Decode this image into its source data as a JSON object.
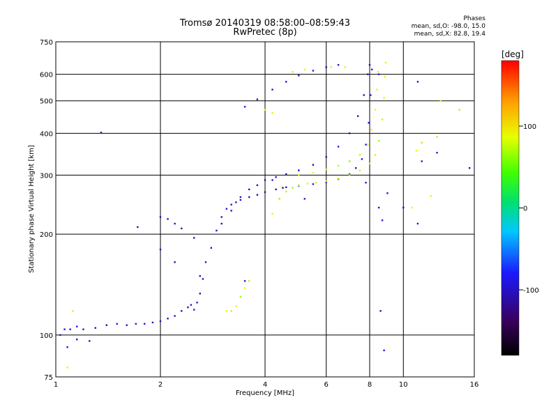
{
  "header": {
    "title": "Tromsø 20140319 08:58:00–08:59:43",
    "subtitle": "RwPretec (8p)"
  },
  "phases_box": {
    "title": "Phases",
    "line_o": "mean, sd,O: -98.0, 15.0",
    "line_x": "mean, sd,X: 82.8, 19.4"
  },
  "chart_data": {
    "type": "scatter",
    "title": "Tromsø 20140319 08:58:00–08:59:43",
    "subtitle": "RwPretec (8p)",
    "xlabel": "Frequency [MHz]",
    "ylabel": "Stationary phase Virtual Height [km]",
    "x_scale": "log",
    "y_scale": "log",
    "xlim": [
      1,
      16
    ],
    "ylim": [
      75,
      750
    ],
    "x_ticks": [
      1,
      2,
      4,
      6,
      8,
      10,
      16
    ],
    "y_ticks": [
      75,
      100,
      200,
      300,
      400,
      500,
      600,
      750
    ],
    "grid": true,
    "colorbar": {
      "label": "[deg]",
      "range": [
        -180,
        180
      ],
      "ticks": [
        100,
        0,
        -100
      ]
    },
    "series": [
      {
        "mode": "O",
        "phase_mean": -98.0,
        "phase_sd": 15.0,
        "points": [
          [
            1.03,
            100
          ],
          [
            1.06,
            104
          ],
          [
            1.1,
            104
          ],
          [
            1.15,
            106
          ],
          [
            1.2,
            104
          ],
          [
            1.3,
            105
          ],
          [
            1.4,
            107
          ],
          [
            1.5,
            108
          ],
          [
            1.6,
            107
          ],
          [
            1.7,
            108
          ],
          [
            1.8,
            108
          ],
          [
            1.9,
            109
          ],
          [
            2.0,
            110
          ],
          [
            2.1,
            112
          ],
          [
            2.2,
            114
          ],
          [
            2.3,
            118
          ],
          [
            2.4,
            121
          ],
          [
            2.45,
            123
          ],
          [
            2.5,
            119
          ],
          [
            2.55,
            125
          ],
          [
            2.6,
            133
          ],
          [
            2.65,
            147
          ],
          [
            2.7,
            165
          ],
          [
            2.8,
            182
          ],
          [
            2.9,
            205
          ],
          [
            3.0,
            225
          ],
          [
            3.1,
            238
          ],
          [
            3.2,
            245
          ],
          [
            3.3,
            249
          ],
          [
            3.4,
            253
          ],
          [
            3.6,
            258
          ],
          [
            3.8,
            262
          ],
          [
            4.0,
            267
          ],
          [
            4.3,
            272
          ],
          [
            4.6,
            276
          ],
          [
            5.0,
            279
          ],
          [
            5.5,
            282
          ],
          [
            6.0,
            286
          ],
          [
            6.5,
            292
          ],
          [
            7.0,
            302
          ],
          [
            7.3,
            315
          ],
          [
            7.6,
            335
          ],
          [
            7.8,
            370
          ],
          [
            7.95,
            430
          ],
          [
            8.05,
            520
          ],
          [
            8.12,
            620
          ],
          [
            2.0,
            225
          ],
          [
            2.1,
            222
          ],
          [
            2.2,
            215
          ],
          [
            2.3,
            208
          ],
          [
            2.5,
            195
          ],
          [
            3.0,
            215
          ],
          [
            3.2,
            235
          ],
          [
            3.4,
            258
          ],
          [
            3.6,
            272
          ],
          [
            3.8,
            280
          ],
          [
            4.0,
            290
          ],
          [
            4.3,
            296
          ],
          [
            4.6,
            302
          ],
          [
            5.0,
            310
          ],
          [
            5.5,
            322
          ],
          [
            6.0,
            340
          ],
          [
            6.5,
            365
          ],
          [
            7.0,
            400
          ],
          [
            7.4,
            450
          ],
          [
            7.7,
            520
          ],
          [
            7.9,
            600
          ],
          [
            8.0,
            640
          ],
          [
            3.5,
            480
          ],
          [
            3.8,
            505
          ],
          [
            4.2,
            540
          ],
          [
            4.6,
            570
          ],
          [
            5.0,
            595
          ],
          [
            5.5,
            615
          ],
          [
            6.0,
            630
          ],
          [
            6.5,
            640
          ],
          [
            1.15,
            97
          ],
          [
            1.25,
            96
          ],
          [
            1.08,
            92
          ],
          [
            1.35,
            402
          ],
          [
            1.72,
            210
          ],
          [
            2.0,
            180
          ],
          [
            2.2,
            165
          ],
          [
            2.6,
            150
          ],
          [
            3.5,
            145
          ],
          [
            4.2,
            290
          ],
          [
            4.5,
            275
          ],
          [
            5.2,
            255
          ],
          [
            7.8,
            285
          ],
          [
            8.5,
            240
          ],
          [
            8.7,
            220
          ],
          [
            9.0,
            265
          ],
          [
            10.0,
            240
          ],
          [
            11.0,
            215
          ],
          [
            12.5,
            350
          ],
          [
            15.5,
            315
          ],
          [
            8.6,
            118
          ],
          [
            8.8,
            90
          ],
          [
            11.0,
            570
          ],
          [
            8.5,
            600
          ],
          [
            11.3,
            330
          ]
        ]
      },
      {
        "mode": "X",
        "phase_mean": 82.8,
        "phase_sd": 19.4,
        "points": [
          [
            4.2,
            230
          ],
          [
            4.4,
            255
          ],
          [
            4.6,
            268
          ],
          [
            4.8,
            275
          ],
          [
            5.0,
            280
          ],
          [
            5.3,
            283
          ],
          [
            5.6,
            285
          ],
          [
            6.0,
            288
          ],
          [
            6.5,
            293
          ],
          [
            7.0,
            300
          ],
          [
            7.5,
            310
          ],
          [
            8.0,
            325
          ],
          [
            8.3,
            345
          ],
          [
            8.5,
            380
          ],
          [
            8.7,
            440
          ],
          [
            8.8,
            510
          ],
          [
            8.85,
            590
          ],
          [
            8.9,
            650
          ],
          [
            5.0,
            300
          ],
          [
            5.5,
            305
          ],
          [
            6.0,
            312
          ],
          [
            6.5,
            320
          ],
          [
            7.0,
            330
          ],
          [
            7.5,
            345
          ],
          [
            7.9,
            370
          ],
          [
            8.1,
            410
          ],
          [
            8.3,
            470
          ],
          [
            8.4,
            540
          ],
          [
            8.45,
            610
          ],
          [
            3.1,
            118
          ],
          [
            3.2,
            118
          ],
          [
            3.3,
            122
          ],
          [
            3.4,
            130
          ],
          [
            3.5,
            138
          ],
          [
            3.6,
            145
          ],
          [
            4.0,
            470
          ],
          [
            4.2,
            460
          ],
          [
            4.8,
            610
          ],
          [
            5.2,
            620
          ],
          [
            6.2,
            630
          ],
          [
            6.8,
            630
          ],
          [
            12.5,
            390
          ],
          [
            12.8,
            500
          ],
          [
            14.5,
            470
          ],
          [
            10.9,
            355
          ],
          [
            11.3,
            375
          ],
          [
            12.0,
            260
          ],
          [
            10.6,
            240
          ],
          [
            1.12,
            118
          ],
          [
            1.08,
            80
          ]
        ]
      }
    ]
  }
}
